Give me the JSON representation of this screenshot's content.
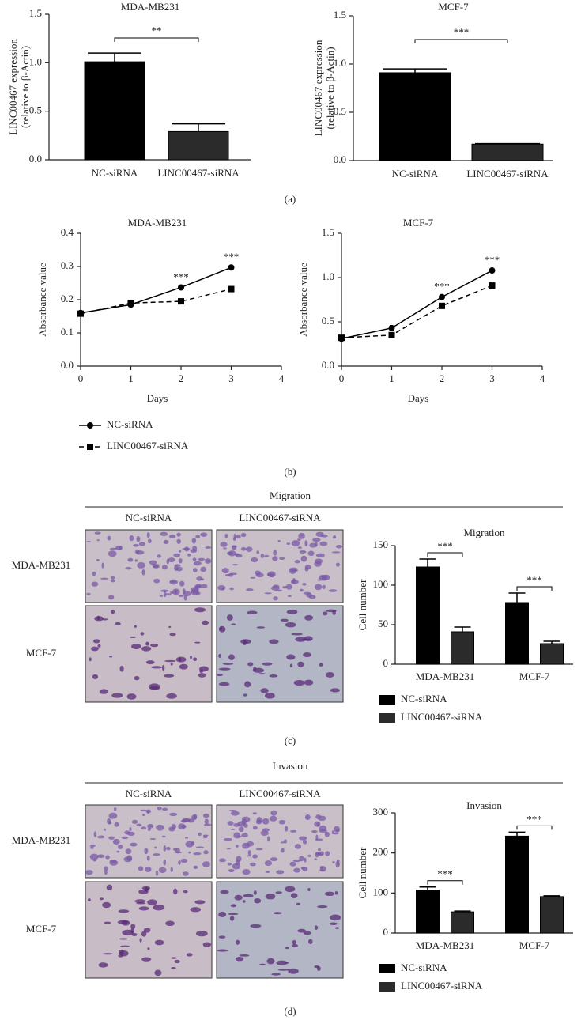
{
  "chart_data": [
    {
      "type": "bar",
      "title": "MDA-MB231",
      "ylabel": [
        "LINC00467 expression",
        "(relative to β-Actin)"
      ],
      "categories": [
        "NC-siRNA",
        "LINC00467-siRNA"
      ],
      "values": [
        1.01,
        0.29
      ],
      "errors": [
        0.09,
        0.08
      ],
      "colors": [
        "#000000",
        "#2b2b2b"
      ],
      "significance": "**",
      "ylim": [
        0,
        1.5
      ],
      "yticks": [
        {
          "value": 0,
          "label": "0.0"
        },
        0.5,
        {
          "value": 1,
          "label": "1.0"
        },
        1.5
      ]
    },
    {
      "type": "bar",
      "title": "MCF-7",
      "ylabel": [
        "LINC00467 expression",
        "(relative to β-Actin)"
      ],
      "categories": [
        "NC-siRNA",
        "LINC00467-siRNA"
      ],
      "values": [
        0.91,
        0.17
      ],
      "errors": [
        0.04,
        0.005
      ],
      "colors": [
        "#000000",
        "#2b2b2b"
      ],
      "significance": "***",
      "ylim": [
        0,
        1.5
      ],
      "yticks": [
        {
          "value": 0,
          "label": "0.0"
        },
        0.5,
        {
          "value": 1,
          "label": "1.0"
        },
        1.5
      ]
    },
    {
      "type": "line",
      "title": "MDA-MB231",
      "xlabel": "Days",
      "ylabel": "Absorbance value",
      "x": [
        0,
        1,
        2,
        3
      ],
      "series": [
        {
          "name": "NC-siRNA",
          "color": "#000000",
          "marker": "circle",
          "linestyle": "solid",
          "values": [
            0.16,
            0.185,
            0.237,
            0.297
          ]
        },
        {
          "name": "LINC00467-siRNA",
          "color": "#000000",
          "marker": "square",
          "linestyle": "dashed",
          "values": [
            0.158,
            0.19,
            0.195,
            0.232
          ]
        }
      ],
      "annotations": [
        {
          "x": 2,
          "text": "***"
        },
        {
          "x": 3,
          "text": "***"
        }
      ],
      "xlim": [
        0,
        4
      ],
      "xticks": [
        0,
        1,
        2,
        3,
        4
      ],
      "ylim": [
        0,
        0.4
      ],
      "yticks": [
        {
          "value": 0,
          "label": "0.0"
        },
        0.1,
        0.2,
        0.3,
        0.4
      ]
    },
    {
      "type": "line",
      "title": "MCF-7",
      "xlabel": "Days",
      "ylabel": "Absorbance value",
      "x": [
        0,
        1,
        2,
        3
      ],
      "series": [
        {
          "name": "NC-siRNA",
          "color": "#000000",
          "marker": "circle",
          "linestyle": "solid",
          "values": [
            0.31,
            0.43,
            0.78,
            1.08
          ]
        },
        {
          "name": "LINC00467-siRNA",
          "color": "#000000",
          "marker": "square",
          "linestyle": "dashed",
          "values": [
            0.32,
            0.35,
            0.68,
            0.91
          ]
        }
      ],
      "annotations": [
        {
          "x": 2,
          "text": "***"
        },
        {
          "x": 3,
          "text": "***"
        }
      ],
      "xlim": [
        0,
        4
      ],
      "xticks": [
        0,
        1,
        2,
        3,
        4
      ],
      "ylim": [
        0,
        1.5
      ],
      "yticks": [
        {
          "value": 0,
          "label": "0.0"
        },
        0.5,
        {
          "value": 1,
          "label": "1.0"
        },
        1.5
      ]
    },
    {
      "type": "bar",
      "title": "Migration",
      "ylabel": "Cell number",
      "categories": [
        "MDA-MB231",
        "MCF-7"
      ],
      "series": [
        {
          "name": "NC-siRNA",
          "color": "#000000",
          "values": [
            123,
            78
          ],
          "errors": [
            10,
            12
          ]
        },
        {
          "name": "LINC00467-siRNA",
          "color": "#2b2b2b",
          "values": [
            41,
            26
          ],
          "errors": [
            6,
            3
          ]
        }
      ],
      "significance": [
        "***",
        "***"
      ],
      "ylim": [
        0,
        150
      ],
      "yticks": [
        0,
        50,
        100,
        150
      ]
    },
    {
      "type": "bar",
      "title": "Invasion",
      "ylabel": "Cell number",
      "categories": [
        "MDA-MB231",
        "MCF-7"
      ],
      "series": [
        {
          "name": "NC-siRNA",
          "color": "#000000",
          "values": [
            107,
            242
          ],
          "errors": [
            8,
            10
          ]
        },
        {
          "name": "LINC00467-siRNA",
          "color": "#2b2b2b",
          "values": [
            53,
            91
          ],
          "errors": [
            2,
            2
          ]
        }
      ],
      "significance": [
        "***",
        "***"
      ],
      "ylim": [
        0,
        300
      ],
      "yticks": [
        0,
        100,
        200,
        300
      ]
    }
  ],
  "panel_labels": [
    "(a)",
    "(b)",
    "(c)",
    "(d)"
  ],
  "image_grids": [
    {
      "title": "Migration",
      "columns": [
        "NC-siRNA",
        "LINC00467-siRNA"
      ],
      "rows": [
        "MDA-MB231",
        "MCF-7"
      ]
    },
    {
      "title": "Invasion",
      "columns": [
        "NC-siRNA",
        "LINC00467-siRNA"
      ],
      "rows": [
        "MDA-MB231",
        "MCF-7"
      ]
    }
  ]
}
